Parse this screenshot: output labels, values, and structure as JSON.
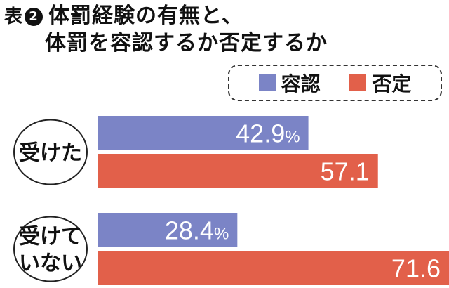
{
  "title": {
    "prefix": "表",
    "number": "2",
    "line1": "体罰経験の有無と、",
    "line2": "体罰を容認するか否定するか"
  },
  "colors": {
    "accept": "#7b84c6",
    "deny": "#e2604a"
  },
  "chart_data": {
    "type": "bar",
    "orientation": "horizontal",
    "categories": [
      [
        "受けた"
      ],
      [
        "受けて",
        "いない"
      ]
    ],
    "series": [
      {
        "name": "容認",
        "values": [
          42.9,
          28.4
        ],
        "labels": [
          "42.9",
          "28.4"
        ],
        "unit": "%"
      },
      {
        "name": "否定",
        "values": [
          57.1,
          71.6
        ],
        "labels": [
          "57.1",
          "71.6"
        ],
        "unit": ""
      }
    ],
    "xlim": [
      0,
      71.6
    ],
    "legend": "top-right",
    "grid": false
  }
}
